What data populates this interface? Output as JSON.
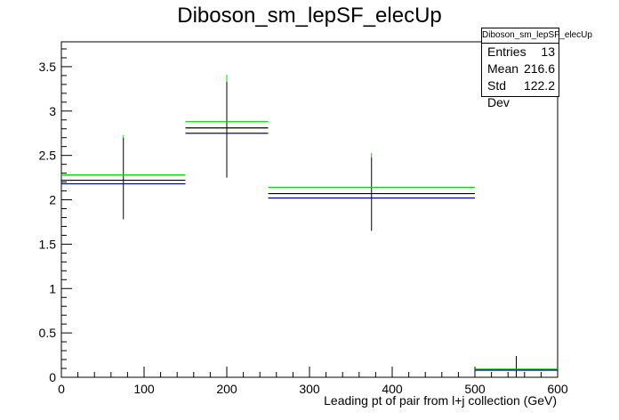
{
  "title": "Diboson_sm_lepSF_elecUp",
  "stats": {
    "name": "Diboson_sm_lepSF_elecUp",
    "entries_label": "Entries",
    "entries": "13",
    "mean_label": "Mean",
    "mean": "216.6",
    "stddev_label": "Std Dev",
    "stddev": "122.2"
  },
  "chart_data": {
    "type": "bar",
    "title": "Diboson_sm_lepSF_elecUp",
    "xlabel": "Leading pt of pair from l+j collection (GeV)",
    "ylabel": "",
    "xlim": [
      0,
      600
    ],
    "ylim": [
      0,
      3.78
    ],
    "x_ticks": [
      "0",
      "100",
      "200",
      "300",
      "400",
      "500",
      "600"
    ],
    "y_ticks": [
      "0",
      "0.5",
      "1",
      "1.5",
      "2",
      "2.5",
      "3",
      "3.5"
    ],
    "bins": [
      {
        "low": 0,
        "high": 150,
        "center": 75
      },
      {
        "low": 150,
        "high": 250,
        "center": 200
      },
      {
        "low": 250,
        "high": 500,
        "center": 375
      },
      {
        "low": 500,
        "high": 600,
        "center": 550
      }
    ],
    "series": [
      {
        "color": "#000000",
        "values": [
          2.22,
          2.81,
          2.07,
          0.09
        ],
        "err_low": [
          1.78,
          2.25,
          1.65,
          0.0
        ],
        "err_high": [
          2.7,
          3.33,
          2.48,
          0.24
        ]
      },
      {
        "color": "#00dd00",
        "values": [
          2.28,
          2.88,
          2.14,
          0.09
        ],
        "err_low": [
          2.7,
          3.33,
          2.48,
          0.0
        ],
        "err_high": [
          2.73,
          3.41,
          2.53,
          0.0
        ]
      },
      {
        "color": "#0000aa",
        "values": [
          2.18,
          2.75,
          2.02,
          0.08
        ],
        "err_low": [
          0,
          0,
          0,
          0
        ],
        "err_high": [
          0,
          0,
          0,
          0
        ]
      }
    ],
    "grid": false,
    "legend": "none"
  }
}
